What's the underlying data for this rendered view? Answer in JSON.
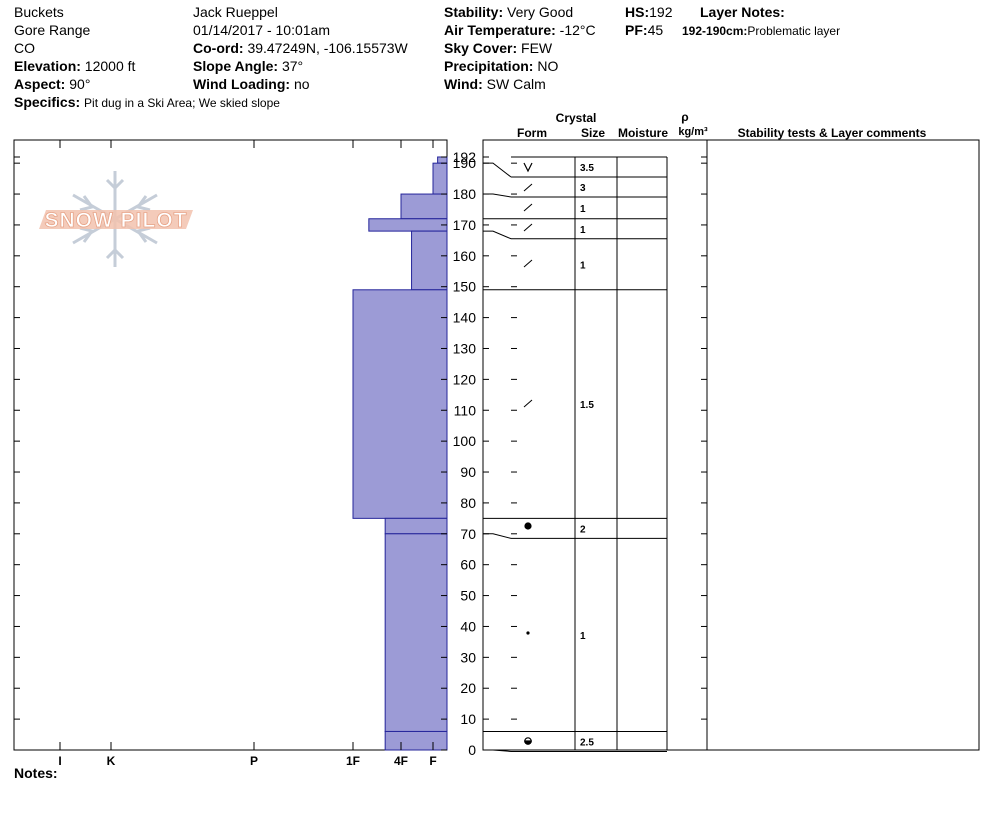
{
  "header": {
    "left": [
      "Buckets",
      "Gore Range",
      "CO"
    ],
    "elevation": {
      "label": "Elevation:",
      "value": "12000 ft"
    },
    "aspect": {
      "label": "Aspect:",
      "value": "90°"
    },
    "specifics": {
      "label": "Specifics:",
      "value": "Pit dug in a Ski Area; We skied slope"
    },
    "observer": "Jack Rueppel",
    "datetime": "01/14/2017 - 10:01am",
    "coord": {
      "label": "Co-ord:",
      "value": "39.47249N, -106.15573W"
    },
    "slope": {
      "label": "Slope Angle:",
      "value": "37°"
    },
    "wind_loading": {
      "label": "Wind Loading:",
      "value": "no"
    },
    "stability": {
      "label": "Stability:",
      "value": "Very Good"
    },
    "air_temp": {
      "label": "Air Temperature:",
      "value": "-12°C"
    },
    "sky": {
      "label": "Sky Cover:",
      "value": "FEW"
    },
    "precip": {
      "label": "Precipitation:",
      "value": "NO"
    },
    "wind": {
      "label": "Wind:",
      "value": "SW Calm"
    },
    "hs": {
      "label": "HS:",
      "value": 192
    },
    "pf": {
      "label": "PF:",
      "value": 45
    },
    "layer_notes": {
      "label": "Layer Notes:",
      "depth": "192-190cm:",
      "text": "Problematic layer"
    }
  },
  "logo": "SNOW PILOT",
  "table_headers": {
    "crystal": "Crystal",
    "form": "Form",
    "size": "Size",
    "moisture": "Moisture",
    "rho": "ρ",
    "density_unit": "kg/m³",
    "comments": "Stability tests & Layer comments"
  },
  "notes_label": "Notes:",
  "chart_data": {
    "type": "snow-profile",
    "ylim": [
      0,
      197.5
    ],
    "yticks": [
      0,
      10,
      20,
      30,
      40,
      50,
      60,
      70,
      80,
      90,
      100,
      110,
      120,
      130,
      140,
      150,
      160,
      170,
      180,
      190,
      192
    ],
    "xlim": [
      7,
      0
    ],
    "xticks": [
      {
        "value": 6,
        "label": "I"
      },
      {
        "value": 5,
        "label": "K"
      },
      {
        "value": 4,
        "label": "P"
      },
      {
        "value": 3,
        "label": "1F"
      },
      {
        "value": 2,
        "label": "4F"
      },
      {
        "value": 1,
        "label": "F"
      }
    ],
    "color": "#9c9bd6",
    "layers": [
      {
        "top": 192,
        "bottom": 190,
        "hardness": 0.67,
        "size": 3.5
      },
      {
        "top": 190,
        "bottom": 180,
        "hardness": 1,
        "size": 3
      },
      {
        "top": 180,
        "bottom": 172,
        "hardness": 2,
        "size": 1
      },
      {
        "top": 172,
        "bottom": 168,
        "hardness": 2.67,
        "size": 1
      },
      {
        "top": 168,
        "bottom": 149,
        "hardness": 1.67,
        "size": 1
      },
      {
        "top": 149,
        "bottom": 75,
        "hardness": 3,
        "size": 1.5
      },
      {
        "top": 75,
        "bottom": 70,
        "hardness": 2.33,
        "size": 2
      },
      {
        "top": 70,
        "bottom": 6,
        "hardness": 2.33,
        "size": 1
      },
      {
        "top": 6,
        "bottom": 0,
        "hardness": 2.33,
        "size": 2.5
      }
    ]
  }
}
